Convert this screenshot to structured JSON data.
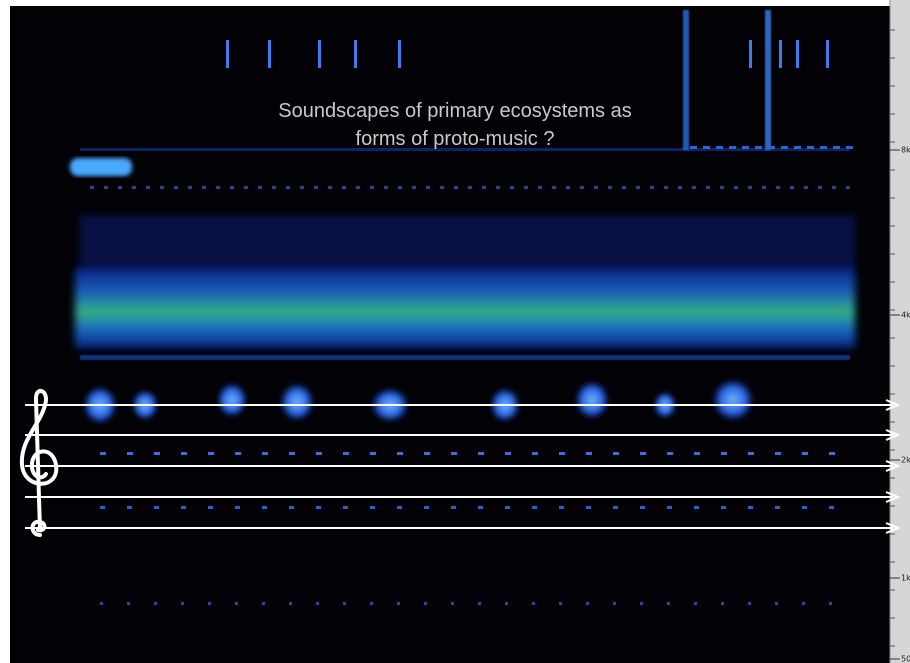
{
  "title_lines": [
    "Soundscapes of primary ecosystems as",
    "forms of proto-music ?"
  ],
  "frequency_labels": [
    "8k",
    "4k",
    "2k",
    "1k",
    "50"
  ]
}
